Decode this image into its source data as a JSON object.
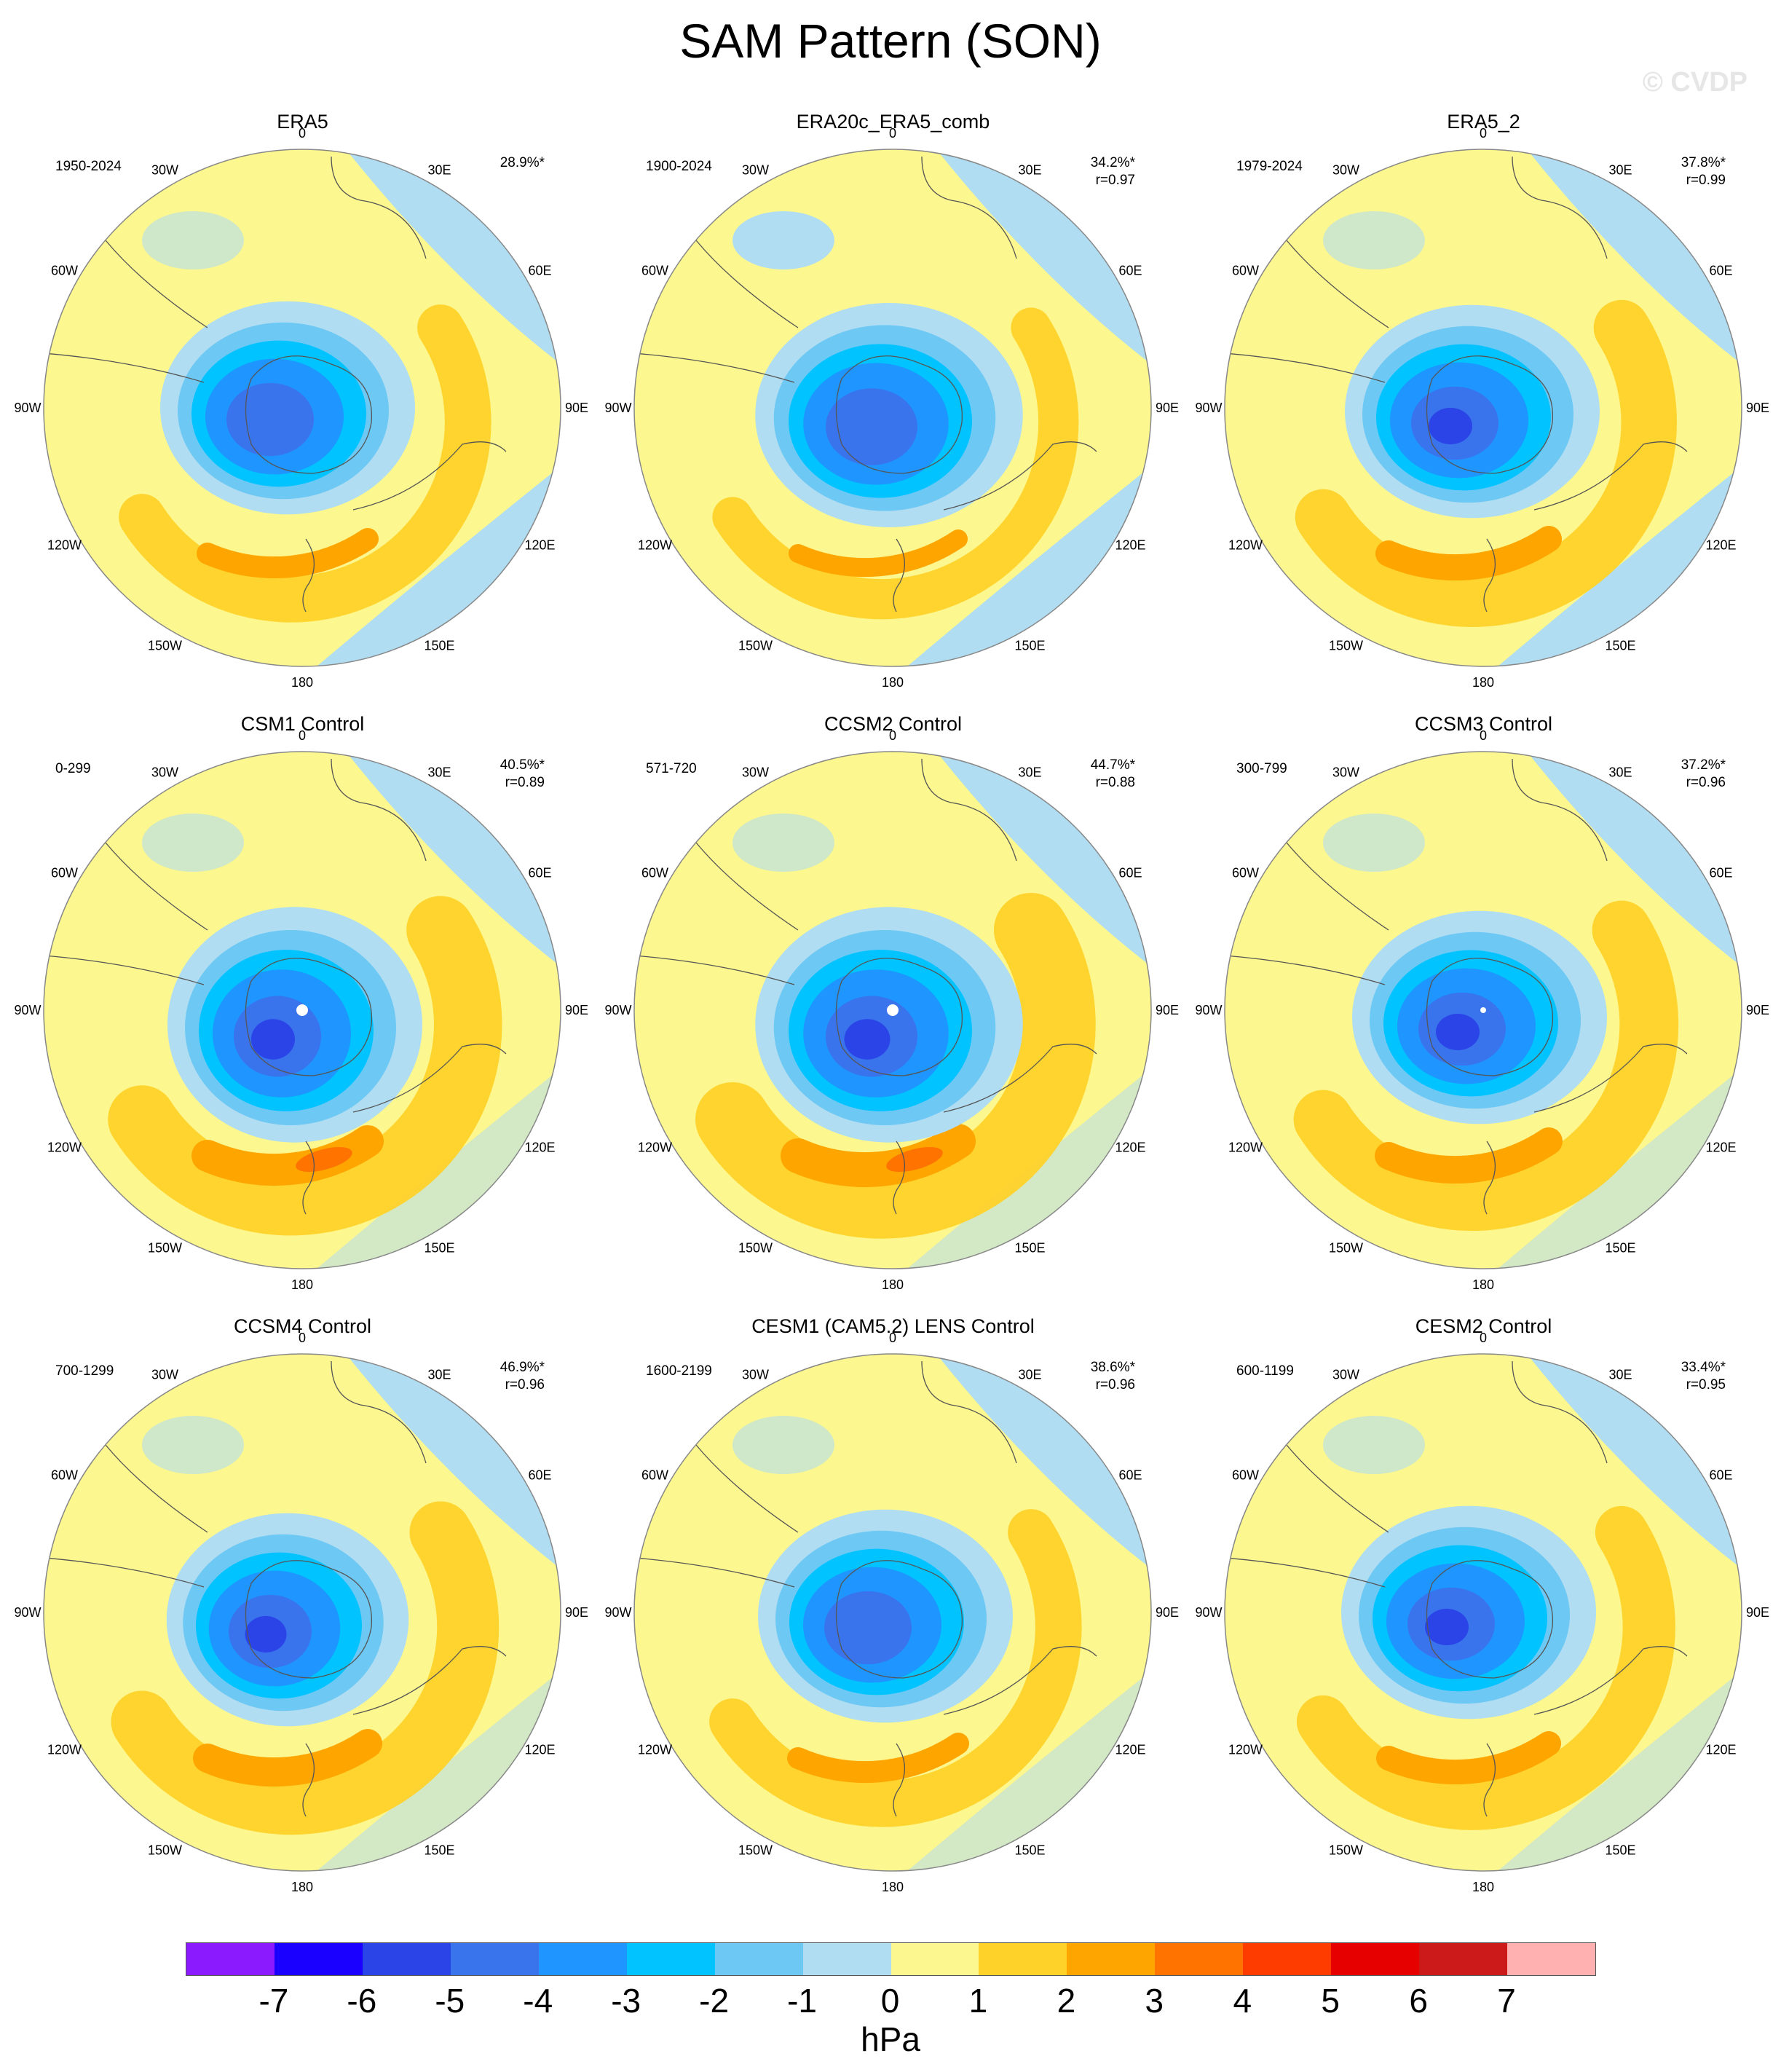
{
  "title": "SAM Pattern (SON)",
  "watermark": "© CVDP",
  "longitude_labels": [
    "0",
    "30E",
    "60E",
    "90E",
    "120E",
    "150E",
    "180",
    "150W",
    "120W",
    "90W",
    "60W",
    "30W"
  ],
  "panels": [
    {
      "title": "ERA5",
      "years": "1950-2024",
      "pct": "28.9%*",
      "r": ""
    },
    {
      "title": "ERA20c_ERA5_comb",
      "years": "1900-2024",
      "pct": "34.2%*",
      "r": "r=0.97"
    },
    {
      "title": "ERA5_2",
      "years": "1979-2024",
      "pct": "37.8%*",
      "r": "r=0.99"
    },
    {
      "title": "CSM1 Control",
      "years": "0-299",
      "pct": "40.5%*",
      "r": "r=0.89"
    },
    {
      "title": "CCSM2 Control",
      "years": "571-720",
      "pct": "44.7%*",
      "r": "r=0.88"
    },
    {
      "title": "CCSM3 Control",
      "years": "300-799",
      "pct": "37.2%*",
      "r": "r=0.96"
    },
    {
      "title": "CCSM4 Control",
      "years": "700-1299",
      "pct": "46.9%*",
      "r": "r=0.96"
    },
    {
      "title": "CESM1 (CAM5.2) LENS Control",
      "years": "1600-2199",
      "pct": "38.6%*",
      "r": "r=0.96"
    },
    {
      "title": "CESM2 Control",
      "years": "600-1199",
      "pct": "33.4%*",
      "r": "r=0.95"
    }
  ],
  "colorbar": {
    "units": "hPa",
    "labels": [
      "-7",
      "-6",
      "-5",
      "-4",
      "-3",
      "-2",
      "-1",
      "0",
      "1",
      "2",
      "3",
      "4",
      "5",
      "6",
      "7"
    ],
    "colors": [
      "#8c1aff",
      "#1a00ff",
      "#2a44e8",
      "#3a74ec",
      "#1e95ff",
      "#00c3ff",
      "#6dc8f4",
      "#b0ddf2",
      "#fcf78e",
      "#ffd22a",
      "#ffa500",
      "#ff7300",
      "#ff3c00",
      "#e60000",
      "#cc1a1a",
      "#ffb0b0"
    ]
  }
}
